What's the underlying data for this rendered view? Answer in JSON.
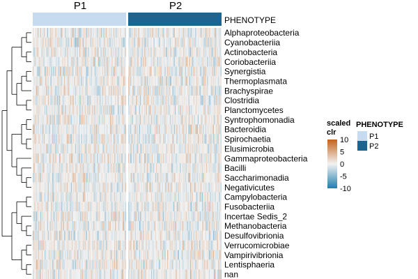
{
  "chart_data": {
    "type": "heatmap",
    "title": "",
    "groups": [
      "P1",
      "P2"
    ],
    "annotation_title": "PHENOTYPE",
    "rows": [
      "Alphaproteobacteria",
      "Cyanobacteriia",
      "Actinobacteria",
      "Coriobacteriia",
      "Synergistia",
      "Thermoplasmata",
      "Brachyspirae",
      "Clostridia",
      "Planctomycetes",
      "Syntrophomonadia",
      "Bacteroidia",
      "Spirochaetia",
      "Elusimicrobia",
      "Gammaproteobacteria",
      "Bacilli",
      "Saccharimonadia",
      "Negativicutes",
      "Campylobacteria",
      "Fusobacteriia",
      "Incertae Sedis_2",
      "Methanobacteria",
      "Desulfovibrionia",
      "Verrucomicrobiae",
      "Vampirivibrionia",
      "Lentisphaeria",
      "nan"
    ],
    "color_scale": {
      "title_line1": "scaled",
      "title_line2": "clr",
      "ticks": [
        "10",
        "5",
        "0",
        "-5",
        "-10"
      ],
      "tick_values": [
        10,
        5,
        0,
        -5,
        -10
      ],
      "range": [
        -10,
        10
      ],
      "colors": {
        "low": "#1f7fae",
        "mid": "#f2f2f2",
        "high": "#c4631c"
      }
    },
    "legend": {
      "title": "PHENOTYPE",
      "entries": [
        {
          "label": "P1",
          "color": "#c6dbf0"
        },
        {
          "label": "P2",
          "color": "#1e6490"
        }
      ]
    }
  }
}
